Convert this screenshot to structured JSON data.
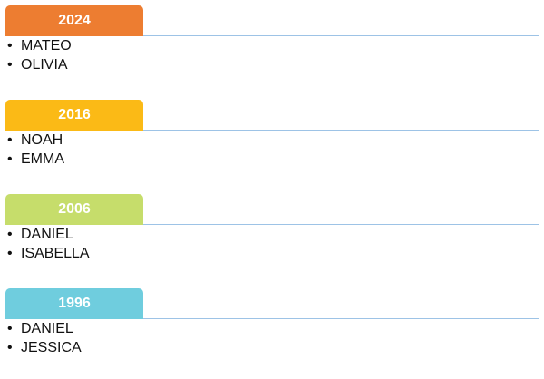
{
  "sections": [
    {
      "year": "2024",
      "color": "#ED7D31",
      "names": [
        "MATEO",
        "OLIVIA"
      ]
    },
    {
      "year": "2016",
      "color": "#FBBA16",
      "names": [
        "NOAH",
        "EMMA"
      ]
    },
    {
      "year": "2006",
      "color": "#C6DD6B",
      "names": [
        "DANIEL",
        "ISABELLA"
      ]
    },
    {
      "year": "1996",
      "color": "#6FCDDE",
      "names": [
        "DANIEL",
        "JESSICA"
      ]
    }
  ]
}
